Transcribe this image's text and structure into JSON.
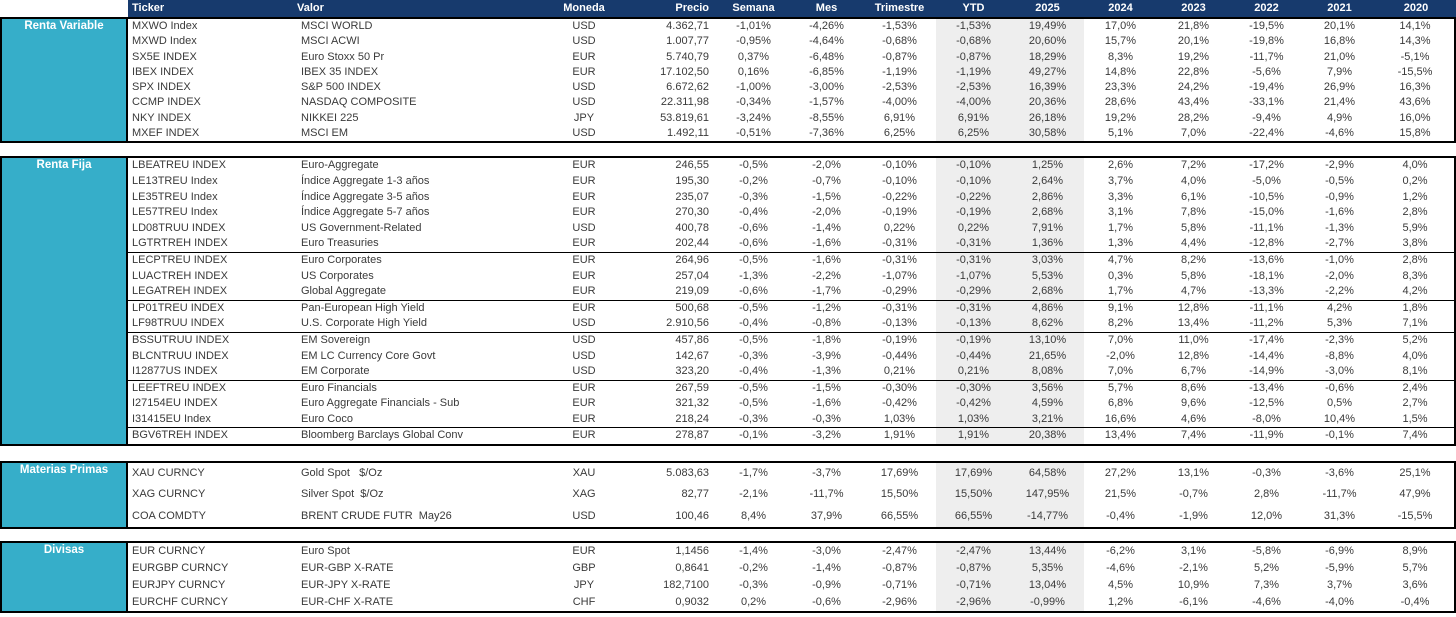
{
  "colors": {
    "header_bg": "#173A6D",
    "section_bg": "#36AEC9",
    "shaded_col_bg": "#EEEEEE",
    "text": "#3A3A3A"
  },
  "header": {
    "columns": [
      "Ticker",
      "Valor",
      "Moneda",
      "Precio",
      "Semana",
      "Mes",
      "Trimestre",
      "YTD",
      "2025",
      "2024",
      "2023",
      "2022",
      "2021",
      "2020"
    ]
  },
  "sections": [
    {
      "id": "renta-variable",
      "label": "Renta Variable",
      "separators_before": [],
      "rows": [
        [
          "MXWO Index",
          "MSCI WORLD",
          "USD",
          "4.362,71",
          "-1,01%",
          "-4,26%",
          "-1,53%",
          "-1,53%",
          "19,49%",
          "17,0%",
          "21,8%",
          "-19,5%",
          "20,1%",
          "14,1%"
        ],
        [
          "MXWD Index",
          "MSCI ACWI",
          "USD",
          "1.007,77",
          "-0,95%",
          "-4,64%",
          "-0,68%",
          "-0,68%",
          "20,60%",
          "15,7%",
          "20,1%",
          "-19,8%",
          "16,8%",
          "14,3%"
        ],
        [
          "SX5E INDEX",
          "Euro Stoxx 50 Pr",
          "EUR",
          "5.740,79",
          "0,37%",
          "-6,48%",
          "-0,87%",
          "-0,87%",
          "18,29%",
          "8,3%",
          "19,2%",
          "-11,7%",
          "21,0%",
          "-5,1%"
        ],
        [
          "IBEX INDEX",
          "IBEX 35 INDEX",
          "EUR",
          "17.102,50",
          "0,16%",
          "-6,85%",
          "-1,19%",
          "-1,19%",
          "49,27%",
          "14,8%",
          "22,8%",
          "-5,6%",
          "7,9%",
          "-15,5%"
        ],
        [
          "SPX INDEX",
          "S&P 500 INDEX",
          "USD",
          "6.672,62",
          "-1,00%",
          "-3,00%",
          "-2,53%",
          "-2,53%",
          "16,39%",
          "23,3%",
          "24,2%",
          "-19,4%",
          "26,9%",
          "16,3%"
        ],
        [
          "CCMP INDEX",
          "NASDAQ COMPOSITE",
          "USD",
          "22.311,98",
          "-0,34%",
          "-1,57%",
          "-4,00%",
          "-4,00%",
          "20,36%",
          "28,6%",
          "43,4%",
          "-33,1%",
          "21,4%",
          "43,6%"
        ],
        [
          "NKY INDEX",
          "NIKKEI 225",
          "JPY",
          "53.819,61",
          "-3,24%",
          "-8,55%",
          "6,91%",
          "6,91%",
          "26,18%",
          "19,2%",
          "28,2%",
          "-9,4%",
          "4,9%",
          "16,0%"
        ],
        [
          "MXEF INDEX",
          "MSCI EM",
          "USD",
          "1.492,11",
          "-0,51%",
          "-7,36%",
          "6,25%",
          "6,25%",
          "30,58%",
          "5,1%",
          "7,0%",
          "-22,4%",
          "-4,6%",
          "15,8%"
        ]
      ]
    },
    {
      "id": "renta-fija",
      "label": "Renta Fija",
      "separators_before": [
        6,
        9,
        11,
        14,
        17
      ],
      "rows": [
        [
          "LBEATREU INDEX",
          "Euro-Aggregate",
          "EUR",
          "246,55",
          "-0,5%",
          "-2,0%",
          "-0,10%",
          "-0,10%",
          "1,25%",
          "2,6%",
          "7,2%",
          "-17,2%",
          "-2,9%",
          "4,0%"
        ],
        [
          "LE13TREU Index",
          "Índice Aggregate 1-3 años",
          "EUR",
          "195,30",
          "-0,2%",
          "-0,7%",
          "-0,10%",
          "-0,10%",
          "2,64%",
          "3,7%",
          "4,0%",
          "-5,0%",
          "-0,5%",
          "0,2%"
        ],
        [
          "LE35TREU Index",
          "Índice Aggregate 3-5 años",
          "EUR",
          "235,07",
          "-0,3%",
          "-1,5%",
          "-0,22%",
          "-0,22%",
          "2,86%",
          "3,3%",
          "6,1%",
          "-10,5%",
          "-0,9%",
          "1,2%"
        ],
        [
          "LE57TREU Index",
          "Índice Aggregate 5-7 años",
          "EUR",
          "270,30",
          "-0,4%",
          "-2,0%",
          "-0,19%",
          "-0,19%",
          "2,68%",
          "3,1%",
          "7,8%",
          "-15,0%",
          "-1,6%",
          "2,8%"
        ],
        [
          "LD08TRUU INDEX",
          "US Government-Related",
          "USD",
          "400,78",
          "-0,6%",
          "-1,4%",
          "0,22%",
          "0,22%",
          "7,91%",
          "1,7%",
          "5,8%",
          "-11,1%",
          "-1,3%",
          "5,9%"
        ],
        [
          "LGTRTREH INDEX",
          "Euro Treasuries",
          "EUR",
          "202,44",
          "-0,6%",
          "-1,6%",
          "-0,31%",
          "-0,31%",
          "1,36%",
          "1,3%",
          "4,4%",
          "-12,8%",
          "-2,7%",
          "3,8%"
        ],
        [
          "LECPTREU INDEX",
          "Euro Corporates",
          "EUR",
          "264,96",
          "-0,5%",
          "-1,6%",
          "-0,31%",
          "-0,31%",
          "3,03%",
          "4,7%",
          "8,2%",
          "-13,6%",
          "-1,0%",
          "2,8%"
        ],
        [
          "LUACTREH INDEX",
          "US Corporates",
          "EUR",
          "257,04",
          "-1,3%",
          "-2,2%",
          "-1,07%",
          "-1,07%",
          "5,53%",
          "0,3%",
          "5,8%",
          "-18,1%",
          "-2,0%",
          "8,3%"
        ],
        [
          "LEGATREH INDEX",
          "Global Aggregate",
          "EUR",
          "219,09",
          "-0,6%",
          "-1,7%",
          "-0,29%",
          "-0,29%",
          "2,68%",
          "1,7%",
          "4,7%",
          "-13,3%",
          "-2,2%",
          "4,2%"
        ],
        [
          "LP01TREU INDEX",
          "Pan-European High Yield",
          "EUR",
          "500,68",
          "-0,5%",
          "-1,2%",
          "-0,31%",
          "-0,31%",
          "4,86%",
          "9,1%",
          "12,8%",
          "-11,1%",
          "4,2%",
          "1,8%"
        ],
        [
          "LF98TRUU INDEX",
          "U.S. Corporate High Yield",
          "USD",
          "2.910,56",
          "-0,4%",
          "-0,8%",
          "-0,13%",
          "-0,13%",
          "8,62%",
          "8,2%",
          "13,4%",
          "-11,2%",
          "5,3%",
          "7,1%"
        ],
        [
          "BSSUTRUU INDEX",
          "EM Sovereign",
          "USD",
          "457,86",
          "-0,5%",
          "-1,8%",
          "-0,19%",
          "-0,19%",
          "13,10%",
          "7,0%",
          "11,0%",
          "-17,4%",
          "-2,3%",
          "5,2%"
        ],
        [
          "BLCNTRUU INDEX",
          "EM LC Currency Core Govt",
          "USD",
          "142,67",
          "-0,3%",
          "-3,9%",
          "-0,44%",
          "-0,44%",
          "21,65%",
          "-2,0%",
          "12,8%",
          "-14,4%",
          "-8,8%",
          "4,0%"
        ],
        [
          "I12877US INDEX",
          "EM Corporate",
          "USD",
          "323,20",
          "-0,4%",
          "-1,3%",
          "0,21%",
          "0,21%",
          "8,08%",
          "7,0%",
          "6,7%",
          "-14,9%",
          "-3,0%",
          "8,1%"
        ],
        [
          "LEEFTREU INDEX",
          "Euro Financials",
          "EUR",
          "267,59",
          "-0,5%",
          "-1,5%",
          "-0,30%",
          "-0,30%",
          "3,56%",
          "5,7%",
          "8,6%",
          "-13,4%",
          "-0,6%",
          "2,4%"
        ],
        [
          "I27154EU INDEX",
          "Euro Aggregate Financials - Sub",
          "EUR",
          "321,32",
          "-0,5%",
          "-1,6%",
          "-0,42%",
          "-0,42%",
          "4,59%",
          "6,8%",
          "9,6%",
          "-12,5%",
          "0,5%",
          "2,7%"
        ],
        [
          "I31415EU Index",
          "Euro Coco",
          "EUR",
          "218,24",
          "-0,3%",
          "-0,3%",
          "1,03%",
          "1,03%",
          "3,21%",
          "16,6%",
          "4,6%",
          "-8,0%",
          "10,4%",
          "1,5%"
        ],
        [
          "BGV6TREH INDEX",
          "Bloomberg Barclays Global Conv",
          "EUR",
          "278,87",
          "-0,1%",
          "-3,2%",
          "1,91%",
          "1,91%",
          "20,38%",
          "13,4%",
          "7,4%",
          "-11,9%",
          "-0,1%",
          "7,4%"
        ]
      ]
    },
    {
      "id": "materias-primas",
      "label": "Materias Primas",
      "separators_before": [],
      "rows": [
        [
          "XAU CURNCY",
          "Gold Spot   $/Oz",
          "XAU",
          "5.083,63",
          "-1,7%",
          "-3,7%",
          "17,69%",
          "17,69%",
          "64,58%",
          "27,2%",
          "13,1%",
          "-0,3%",
          "-3,6%",
          "25,1%"
        ],
        [
          "XAG CURNCY",
          "Silver Spot  $/Oz",
          "XAG",
          "82,77",
          "-2,1%",
          "-11,7%",
          "15,50%",
          "15,50%",
          "147,95%",
          "21,5%",
          "-0,7%",
          "2,8%",
          "-11,7%",
          "47,9%"
        ],
        [
          "COA COMDTY",
          "BRENT CRUDE FUTR  May26",
          "USD",
          "100,46",
          "8,4%",
          "37,9%",
          "66,55%",
          "66,55%",
          "-14,77%",
          "-0,4%",
          "-1,9%",
          "12,0%",
          "31,3%",
          "-15,5%"
        ]
      ]
    },
    {
      "id": "divisas",
      "label": "Divisas",
      "separators_before": [],
      "rows": [
        [
          "EUR CURNCY",
          "Euro Spot",
          "EUR",
          "1,1456",
          "-1,4%",
          "-3,0%",
          "-2,47%",
          "-2,47%",
          "13,44%",
          "-6,2%",
          "3,1%",
          "-5,8%",
          "-6,9%",
          "8,9%"
        ],
        [
          "EURGBP CURNCY",
          "EUR-GBP X-RATE",
          "GBP",
          "0,8641",
          "-0,2%",
          "-1,4%",
          "-0,87%",
          "-0,87%",
          "5,35%",
          "-4,6%",
          "-2,1%",
          "5,2%",
          "-5,9%",
          "5,7%"
        ],
        [
          "EURJPY CURNCY",
          "EUR-JPY X-RATE",
          "JPY",
          "182,7100",
          "-0,3%",
          "-0,9%",
          "-0,71%",
          "-0,71%",
          "13,04%",
          "4,5%",
          "10,9%",
          "7,3%",
          "3,7%",
          "3,6%"
        ],
        [
          "EURCHF CURNCY",
          "EUR-CHF X-RATE",
          "CHF",
          "0,9032",
          "0,2%",
          "-0,6%",
          "-2,96%",
          "-2,96%",
          "-0,99%",
          "1,2%",
          "-6,1%",
          "-4,6%",
          "-4,0%",
          "-0,4%"
        ]
      ]
    }
  ]
}
